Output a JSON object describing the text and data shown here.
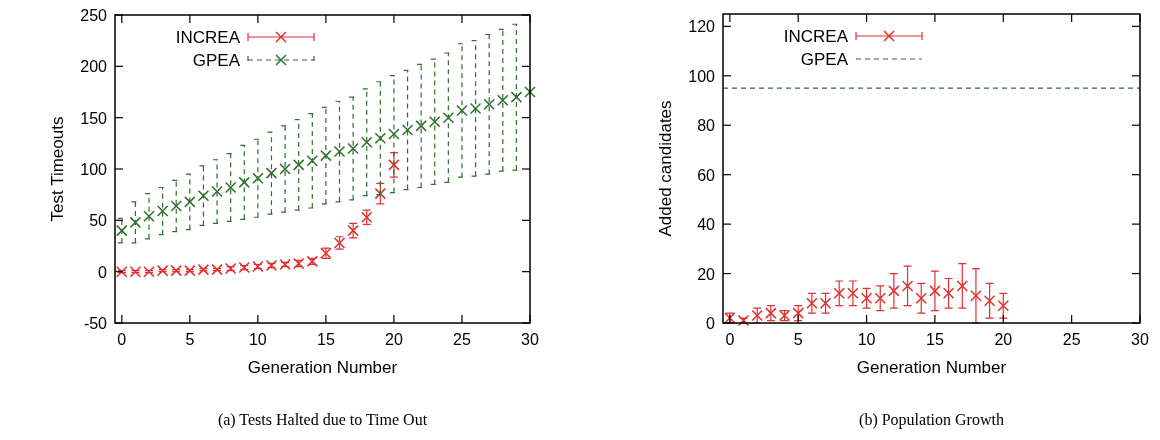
{
  "chart_data": [
    {
      "type": "scatter",
      "xlabel": "Generation Number",
      "ylabel": "Test Timeouts",
      "xlim": [
        -0.5,
        30
      ],
      "ylim": [
        -50,
        250
      ],
      "xticks": [
        0,
        5,
        10,
        15,
        20,
        25,
        30
      ],
      "yticks": [
        -50,
        0,
        50,
        100,
        150,
        200,
        250
      ],
      "legend": "top left",
      "grid": false,
      "annotations": [
        "(a) Tests Halted due to Time Out"
      ],
      "series": [
        {
          "name": "INCREA",
          "color": "#e03030",
          "marker": "cross",
          "line_style": "solid",
          "x": [
            0,
            1,
            2,
            3,
            4,
            5,
            6,
            7,
            8,
            9,
            10,
            11,
            12,
            13,
            14,
            15,
            16,
            17,
            18,
            19,
            20
          ],
          "values": [
            0,
            0,
            0,
            1,
            1,
            1,
            2,
            2,
            3,
            4,
            5,
            6,
            7,
            8,
            10,
            18,
            28,
            40,
            53,
            76,
            104
          ],
          "errors": [
            1,
            1,
            1,
            1,
            1,
            1,
            1,
            1,
            2,
            2,
            2,
            2,
            2,
            3,
            3,
            5,
            6,
            7,
            7,
            10,
            12
          ]
        },
        {
          "name": "GPEA",
          "color": "#2e6e2e",
          "marker": "cross",
          "line_style": "dashed",
          "x": [
            0,
            1,
            2,
            3,
            4,
            5,
            6,
            7,
            8,
            9,
            10,
            11,
            12,
            13,
            14,
            15,
            16,
            17,
            18,
            19,
            20,
            21,
            22,
            23,
            24,
            25,
            26,
            27,
            28,
            29,
            30
          ],
          "values": [
            40,
            48,
            54,
            59,
            64,
            68,
            74,
            78,
            82,
            87,
            91,
            96,
            100,
            104,
            108,
            113,
            117,
            120,
            126,
            130,
            134,
            138,
            142,
            146,
            150,
            157,
            159,
            163,
            167,
            170,
            175
          ],
          "errors": [
            12,
            20,
            22,
            23,
            25,
            27,
            29,
            31,
            33,
            36,
            38,
            40,
            42,
            44,
            46,
            47,
            49,
            50,
            52,
            55,
            57,
            58,
            60,
            61,
            63,
            65,
            66,
            68,
            69,
            71,
            null
          ]
        }
      ]
    },
    {
      "type": "scatter",
      "xlabel": "Generation Number",
      "ylabel": "Added candidates",
      "xlim": [
        -0.5,
        30
      ],
      "ylim": [
        0,
        125
      ],
      "xticks": [
        0,
        5,
        10,
        15,
        20,
        25,
        30
      ],
      "yticks": [
        0,
        20,
        40,
        60,
        80,
        100,
        120
      ],
      "legend": "top left",
      "grid": false,
      "annotations": [
        "(b) Population Growth"
      ],
      "series": [
        {
          "name": "INCREA",
          "color": "#e03030",
          "marker": "cross",
          "line_style": "solid",
          "x": [
            0,
            1,
            2,
            3,
            4,
            5,
            6,
            7,
            8,
            9,
            10,
            11,
            12,
            13,
            14,
            15,
            16,
            17,
            18,
            19,
            20
          ],
          "values": [
            2,
            1,
            3,
            4,
            3,
            4,
            8,
            8,
            12,
            12,
            10,
            10,
            13,
            15,
            10,
            13,
            12,
            15,
            11,
            9,
            7
          ],
          "errors": [
            2,
            1,
            3,
            3,
            2,
            3,
            4,
            4,
            5,
            5,
            4,
            5,
            7,
            8,
            6,
            8,
            6,
            9,
            11,
            7,
            5
          ]
        },
        {
          "name": "GPEA",
          "type": "line",
          "color": "#2e6e2e",
          "marker": "none",
          "line_style": "dashed",
          "x": [
            -0.5,
            30
          ],
          "values": [
            95,
            95
          ]
        }
      ]
    }
  ]
}
